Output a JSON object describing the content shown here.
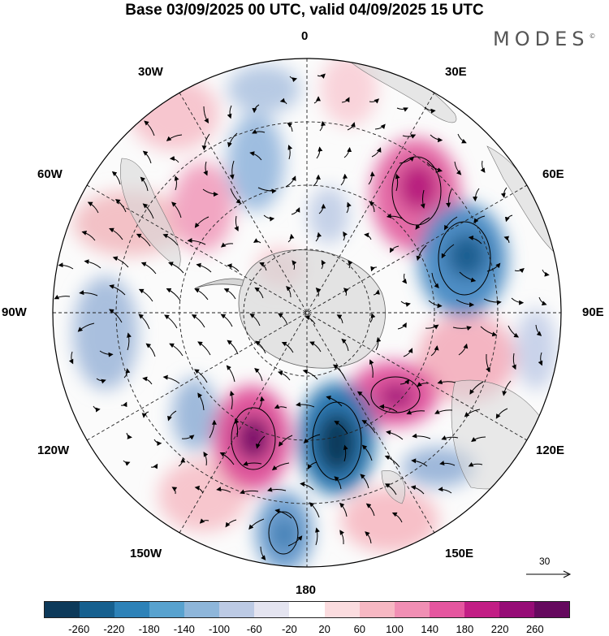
{
  "title": "Base 03/09/2025 00 UTC, valid 04/09/2025 15 UTC",
  "brand": "MODES",
  "brand_mark": "©",
  "map_labels": {
    "lon_0": "0",
    "lon_30e": "30E",
    "lon_60e": "60E",
    "lon_90e": "90E",
    "lon_120e": "120E",
    "lon_150e": "150E",
    "lon_180": "180",
    "lon_150w": "150W",
    "lon_120w": "120W",
    "lon_90w": "90W",
    "lon_60w": "60W",
    "lon_30w": "30W"
  },
  "reference_vector": "30",
  "colorbar": {
    "colors": [
      "#0d3a5a",
      "#16608f",
      "#2d82b8",
      "#58a2cf",
      "#8eb6da",
      "#bccae4",
      "#e4e4f0",
      "#ffffff",
      "#fbdcdf",
      "#f7b8c3",
      "#f18fb4",
      "#e5569f",
      "#c21e85",
      "#960c76",
      "#65095e"
    ],
    "ticks": [
      "-260",
      "-220",
      "-180",
      "-140",
      "-100",
      "-60",
      "-20",
      "20",
      "60",
      "100",
      "140",
      "180",
      "220",
      "260"
    ]
  },
  "anomaly_centers": [
    {
      "lon": 62,
      "lat": -48,
      "value": 200
    },
    {
      "lon": 65,
      "lat": -55,
      "value": -200
    },
    {
      "lon": 115,
      "lat": -55,
      "value": 160
    },
    {
      "lon": 130,
      "lat": -52,
      "value": 180
    },
    {
      "lon": 165,
      "lat": -48,
      "value": -260
    },
    {
      "lon": -162,
      "lat": -47,
      "value": 240
    },
    {
      "lon": -175,
      "lat": -38,
      "value": -160
    },
    {
      "lon": -120,
      "lat": -42,
      "value": -100
    },
    {
      "lon": -90,
      "lat": -42,
      "value": -120
    },
    {
      "lon": -55,
      "lat": -48,
      "value": 120
    },
    {
      "lon": -20,
      "lat": -45,
      "value": -140
    },
    {
      "lon": 5,
      "lat": -40,
      "value": -100
    }
  ]
}
